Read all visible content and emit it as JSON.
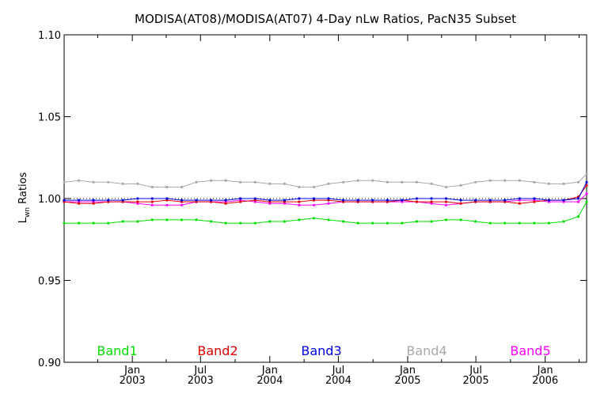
{
  "chart_data": {
    "type": "line",
    "title": "MODISA(AT08)/MODISA(AT07) 4-Day nLw Ratios, PacN35 Subset",
    "ylabel_main": "L",
    "ylabel_sub": "wn",
    "ylabel_rest": " Ratios",
    "ylim": [
      0.9,
      1.1
    ],
    "yticks": [
      "0.90",
      "0.95",
      "1.00",
      "1.05",
      "1.10"
    ],
    "xlim": [
      "2002-07-04",
      "2006-04-21"
    ],
    "xtick_labels": [
      {
        "date": "2003-01-01",
        "line1": "Jan",
        "line2": "2003"
      },
      {
        "date": "2003-07-01",
        "line1": "Jul",
        "line2": "2003"
      },
      {
        "date": "2004-01-01",
        "line1": "Jan",
        "line2": "2004"
      },
      {
        "date": "2004-07-01",
        "line1": "Jul",
        "line2": "2004"
      },
      {
        "date": "2005-01-01",
        "line1": "Jan",
        "line2": "2005"
      },
      {
        "date": "2005-07-01",
        "line1": "Jul",
        "line2": "2005"
      },
      {
        "date": "2006-01-01",
        "line1": "Jan",
        "line2": "2006"
      }
    ],
    "xminor_ticks": [
      "2002-10-01",
      "2003-04-01",
      "2003-10-01",
      "2004-04-01",
      "2004-10-01",
      "2005-04-01",
      "2005-10-01",
      "2006-04-01"
    ],
    "reference_line": 1.0,
    "x": [
      "2002-07-04",
      "2002-08-12",
      "2002-09-20",
      "2002-10-29",
      "2002-12-07",
      "2003-01-15",
      "2003-02-23",
      "2003-04-03",
      "2003-05-12",
      "2003-06-20",
      "2003-07-29",
      "2003-09-06",
      "2003-10-15",
      "2003-11-23",
      "2004-01-01",
      "2004-02-09",
      "2004-03-19",
      "2004-04-27",
      "2004-06-05",
      "2004-07-14",
      "2004-08-22",
      "2004-09-30",
      "2004-11-08",
      "2004-12-17",
      "2005-01-25",
      "2005-03-05",
      "2005-04-13",
      "2005-05-22",
      "2005-06-30",
      "2005-08-08",
      "2005-09-16",
      "2005-10-25",
      "2005-12-03",
      "2006-01-11",
      "2006-02-19",
      "2006-03-30",
      "2006-04-21"
    ],
    "series": [
      {
        "name": "Band1",
        "color": "#00e000",
        "values": [
          0.985,
          0.985,
          0.985,
          0.985,
          0.986,
          0.986,
          0.987,
          0.987,
          0.987,
          0.987,
          0.986,
          0.985,
          0.985,
          0.985,
          0.986,
          0.986,
          0.987,
          0.988,
          0.987,
          0.986,
          0.985,
          0.985,
          0.985,
          0.985,
          0.986,
          0.986,
          0.987,
          0.987,
          0.986,
          0.985,
          0.985,
          0.985,
          0.985,
          0.985,
          0.986,
          0.989,
          0.998
        ]
      },
      {
        "name": "Band2",
        "color": "#e00000",
        "values": [
          0.998,
          0.997,
          0.997,
          0.998,
          0.998,
          0.998,
          0.998,
          0.999,
          0.998,
          0.998,
          0.998,
          0.997,
          0.998,
          0.999,
          0.998,
          0.998,
          0.998,
          0.999,
          0.999,
          0.998,
          0.998,
          0.998,
          0.998,
          0.999,
          0.998,
          0.998,
          0.998,
          0.997,
          0.998,
          0.998,
          0.998,
          0.997,
          0.998,
          0.999,
          0.999,
          1.001,
          1.008
        ]
      },
      {
        "name": "Band3",
        "color": "#0000e0",
        "values": [
          0.999,
          0.999,
          0.999,
          0.999,
          0.999,
          1.0,
          1.0,
          1.0,
          0.999,
          0.999,
          0.999,
          0.999,
          1.0,
          1.0,
          0.999,
          0.999,
          1.0,
          1.0,
          1.0,
          0.999,
          0.999,
          0.999,
          0.999,
          0.999,
          1.0,
          1.0,
          1.0,
          0.999,
          0.999,
          0.999,
          0.999,
          1.0,
          1.0,
          0.999,
          0.999,
          1.0,
          1.01
        ]
      },
      {
        "name": "Band4",
        "color": "#a8a8a8",
        "values": [
          1.01,
          1.011,
          1.01,
          1.01,
          1.009,
          1.009,
          1.007,
          1.007,
          1.007,
          1.01,
          1.011,
          1.011,
          1.01,
          1.01,
          1.009,
          1.009,
          1.007,
          1.007,
          1.009,
          1.01,
          1.011,
          1.011,
          1.01,
          1.01,
          1.01,
          1.009,
          1.007,
          1.008,
          1.01,
          1.011,
          1.011,
          1.011,
          1.01,
          1.009,
          1.009,
          1.01,
          1.015
        ]
      },
      {
        "name": "Band5",
        "color": "#ff00ff",
        "values": [
          0.998,
          0.998,
          0.998,
          0.998,
          0.998,
          0.997,
          0.996,
          0.996,
          0.996,
          0.998,
          0.998,
          0.998,
          0.999,
          0.998,
          0.997,
          0.997,
          0.996,
          0.996,
          0.997,
          0.998,
          0.998,
          0.998,
          0.998,
          0.998,
          0.998,
          0.997,
          0.996,
          0.997,
          0.998,
          0.998,
          0.998,
          0.999,
          0.999,
          0.998,
          0.998,
          0.998,
          1.003
        ]
      }
    ],
    "legend_placement": "bottom-inside"
  }
}
